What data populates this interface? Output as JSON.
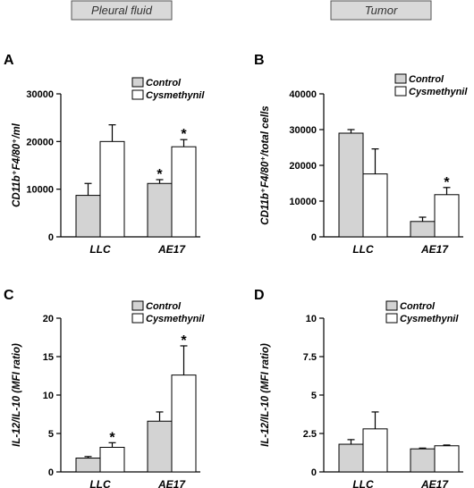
{
  "headers": {
    "left": "Pleural fluid",
    "right": "Tumor"
  },
  "colors": {
    "control": "#d3d3d3",
    "cysmethynil": "#ffffff",
    "header_fill": "#d9d9d9"
  },
  "chart_data": [
    {
      "panel": "A",
      "type": "bar",
      "ylabel": "CD11b⁺F4/80⁺/ml",
      "ylim": [
        0,
        30000
      ],
      "yticks": [
        0,
        10000,
        20000,
        30000
      ],
      "ytick_labels": [
        "0",
        "10000",
        "20000",
        "30000"
      ],
      "categories": [
        "LLC",
        "AE17"
      ],
      "series": [
        {
          "name": "Control",
          "values": [
            8700,
            11200
          ],
          "errors": [
            2500,
            800
          ]
        },
        {
          "name": "Cysmethynil",
          "values": [
            20000,
            18900
          ],
          "errors": [
            3500,
            1500
          ]
        }
      ],
      "significance": [
        [
          "",
          "*"
        ],
        [
          "",
          "*"
        ]
      ],
      "legend": [
        "Control",
        "Cysmethynil"
      ]
    },
    {
      "panel": "B",
      "type": "bar",
      "ylabel": "CD11b⁺F4/80⁺/total cells",
      "ylim": [
        0,
        40000
      ],
      "yticks": [
        0,
        10000,
        20000,
        30000,
        40000
      ],
      "ytick_labels": [
        "0",
        "10000",
        "20000",
        "30000",
        "40000"
      ],
      "categories": [
        "LLC",
        "AE17"
      ],
      "series": [
        {
          "name": "Control",
          "values": [
            29000,
            4300
          ],
          "errors": [
            1000,
            1200
          ]
        },
        {
          "name": "Cysmethynil",
          "values": [
            17600,
            11800
          ],
          "errors": [
            7000,
            2000
          ]
        }
      ],
      "significance": [
        [
          "",
          ""
        ],
        [
          "",
          "*"
        ]
      ],
      "legend": [
        "Control",
        "Cysmethynil"
      ]
    },
    {
      "panel": "C",
      "type": "bar",
      "ylabel": "IL-12/IL-10 (MFI ratio)",
      "ylim": [
        0,
        20
      ],
      "yticks": [
        0,
        5,
        10,
        15,
        20
      ],
      "ytick_labels": [
        "0",
        "5",
        "10",
        "15",
        "20"
      ],
      "categories": [
        "LLC",
        "AE17"
      ],
      "series": [
        {
          "name": "Control",
          "values": [
            1.8,
            6.6
          ],
          "errors": [
            0.2,
            1.2
          ]
        },
        {
          "name": "Cysmethynil",
          "values": [
            3.2,
            12.6
          ],
          "errors": [
            0.6,
            3.8
          ]
        }
      ],
      "significance": [
        [
          "",
          ""
        ],
        [
          "*",
          "*"
        ]
      ],
      "legend": [
        "Control",
        "Cysmethynil"
      ]
    },
    {
      "panel": "D",
      "type": "bar",
      "ylabel": "IL-12/IL-10 (MFI ratio)",
      "ylim": [
        0,
        10
      ],
      "yticks": [
        0,
        2.5,
        5,
        7.5,
        10
      ],
      "ytick_labels": [
        "0",
        "2.5",
        "5",
        "7.5",
        "10"
      ],
      "categories": [
        "LLC",
        "AE17"
      ],
      "series": [
        {
          "name": "Control",
          "values": [
            1.8,
            1.5
          ],
          "errors": [
            0.3,
            0.05
          ]
        },
        {
          "name": "Cysmethynil",
          "values": [
            2.8,
            1.7
          ],
          "errors": [
            1.1,
            0.05
          ]
        }
      ],
      "significance": [
        [
          "",
          ""
        ],
        [
          "",
          ""
        ]
      ],
      "legend": [
        "Control",
        "Cysmethynil"
      ]
    }
  ]
}
